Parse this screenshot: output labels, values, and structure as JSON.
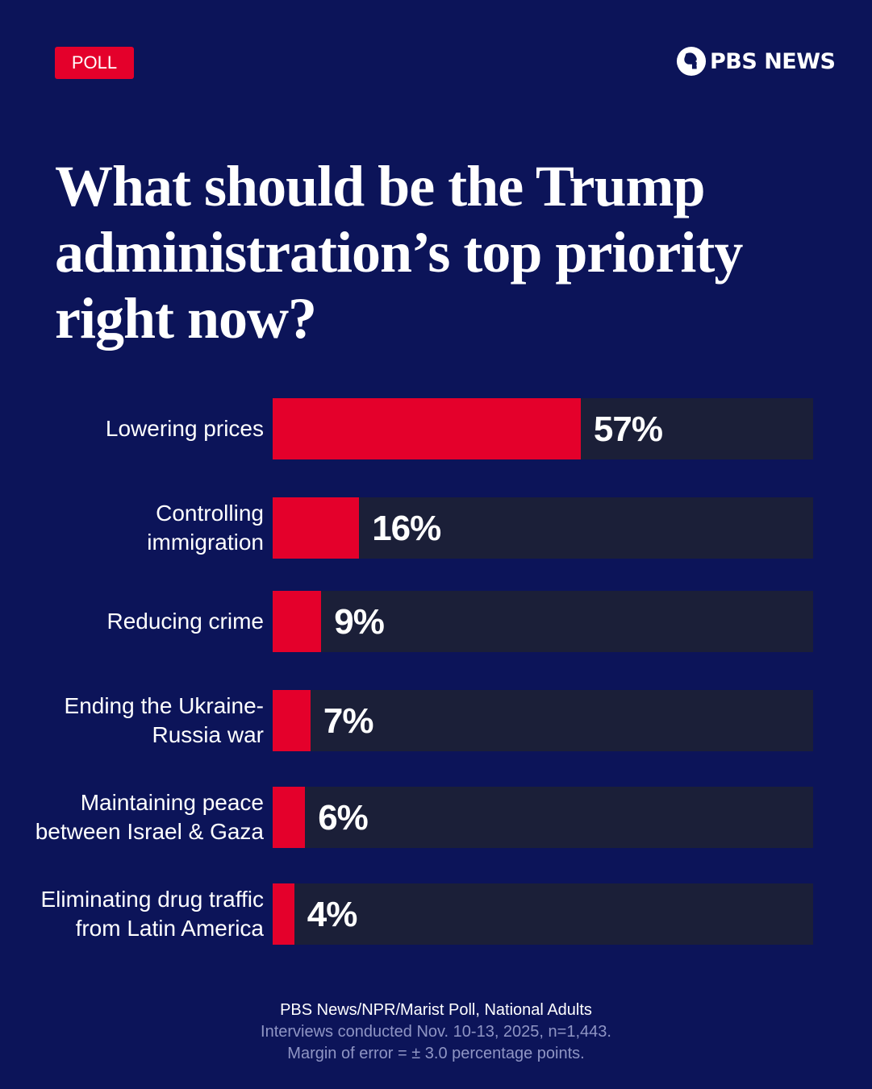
{
  "badge": "POLL",
  "logo": "PBS NEWS",
  "colors": {
    "background": "#0c1459",
    "bar": "#e4002b",
    "track": "#1b1f38"
  },
  "chart_data": {
    "type": "bar",
    "orientation": "horizontal",
    "title": "What should be the Trump administration’s top priority right now?",
    "categories": [
      "Lowering prices",
      "Controlling immigration",
      "Reducing crime",
      "Ending the Ukraine-Russia war",
      "Maintaining peace between Israel & Gaza",
      "Eliminating drug traffic from Latin America"
    ],
    "values": [
      57,
      16,
      9,
      7,
      6,
      4
    ],
    "labels": [
      "57%",
      "16%",
      "9%",
      "7%",
      "6%",
      "4%"
    ],
    "xlim": [
      0,
      100
    ],
    "grid": false
  },
  "footer": {
    "source": "PBS News/NPR/Marist Poll, National Adults",
    "dates": "Interviews conducted Nov. 10-13, 2025, n=1,443.",
    "margin": "Margin of error = ± 3.0 percentage points."
  }
}
